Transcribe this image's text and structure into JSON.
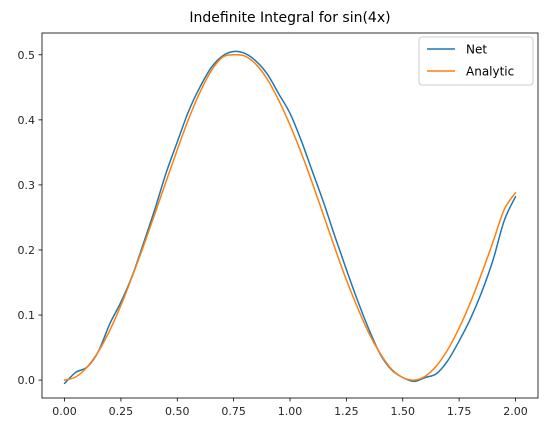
{
  "chart_data": {
    "type": "line",
    "title": "Indefinite Integral for sin(4x)",
    "xlabel": "",
    "ylabel": "",
    "xlim": [
      -0.1,
      2.1
    ],
    "ylim": [
      -0.0275,
      0.5335
    ],
    "xticks": [
      0.0,
      0.25,
      0.5,
      0.75,
      1.0,
      1.25,
      1.5,
      1.75,
      2.0
    ],
    "xtick_labels": [
      "0.00",
      "0.25",
      "0.50",
      "0.75",
      "1.00",
      "1.25",
      "1.50",
      "1.75",
      "2.00"
    ],
    "yticks": [
      0.0,
      0.1,
      0.2,
      0.3,
      0.4,
      0.5
    ],
    "ytick_labels": [
      "0.0",
      "0.1",
      "0.2",
      "0.3",
      "0.4",
      "0.5"
    ],
    "grid": false,
    "legend_position": "top-right",
    "series": [
      {
        "name": "Net",
        "color": "#1f77b4",
        "x": [
          0.0,
          0.05,
          0.1,
          0.15,
          0.2,
          0.25,
          0.3,
          0.35,
          0.4,
          0.45,
          0.5,
          0.55,
          0.6,
          0.65,
          0.7,
          0.75,
          0.8,
          0.85,
          0.9,
          0.95,
          1.0,
          1.05,
          1.1,
          1.15,
          1.2,
          1.25,
          1.3,
          1.35,
          1.4,
          1.45,
          1.5,
          1.55,
          1.6,
          1.65,
          1.7,
          1.75,
          1.8,
          1.85,
          1.9,
          1.95,
          2.0
        ],
        "y": [
          -0.005,
          0.012,
          0.02,
          0.044,
          0.086,
          0.12,
          0.16,
          0.21,
          0.262,
          0.318,
          0.366,
          0.413,
          0.45,
          0.48,
          0.498,
          0.505,
          0.502,
          0.49,
          0.47,
          0.44,
          0.41,
          0.368,
          0.32,
          0.272,
          0.22,
          0.17,
          0.122,
          0.078,
          0.04,
          0.016,
          0.004,
          -0.002,
          0.004,
          0.01,
          0.03,
          0.06,
          0.094,
          0.135,
          0.184,
          0.245,
          0.282
        ]
      },
      {
        "name": "Analytic",
        "color": "#ff7f0e",
        "x": [
          0.0,
          0.05,
          0.1,
          0.15,
          0.2,
          0.25,
          0.3,
          0.35,
          0.4,
          0.45,
          0.5,
          0.55,
          0.6,
          0.65,
          0.7,
          0.75,
          0.8,
          0.85,
          0.9,
          0.95,
          1.0,
          1.05,
          1.1,
          1.15,
          1.2,
          1.25,
          1.3,
          1.35,
          1.4,
          1.45,
          1.5,
          1.55,
          1.6,
          1.65,
          1.7,
          1.75,
          1.8,
          1.85,
          1.9,
          1.95,
          2.0
        ],
        "y": [
          0.0,
          0.005,
          0.02,
          0.044,
          0.076,
          0.115,
          0.159,
          0.206,
          0.255,
          0.305,
          0.354,
          0.401,
          0.442,
          0.475,
          0.496,
          0.5,
          0.498,
          0.485,
          0.462,
          0.43,
          0.392,
          0.349,
          0.302,
          0.252,
          0.202,
          0.154,
          0.111,
          0.072,
          0.041,
          0.017,
          0.004,
          0.0,
          0.006,
          0.022,
          0.047,
          0.08,
          0.119,
          0.164,
          0.212,
          0.262,
          0.288
        ]
      }
    ]
  }
}
